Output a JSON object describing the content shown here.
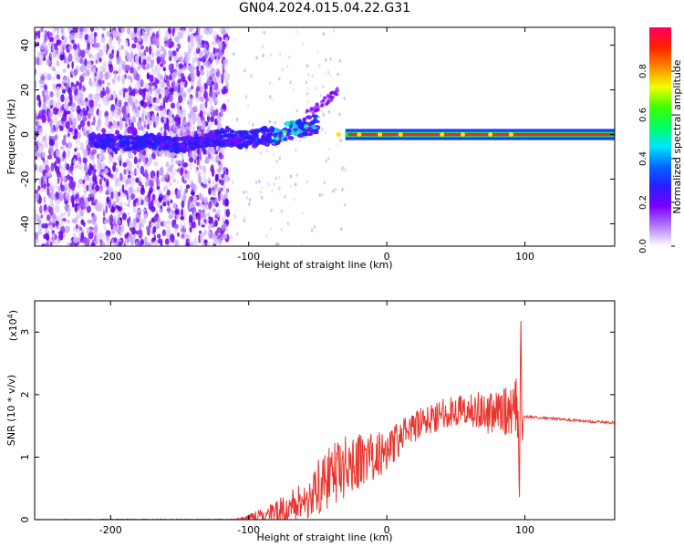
{
  "title": "GN04.2024.015.04.22.G31",
  "chart_data": [
    {
      "type": "heatmap",
      "xlabel": "Height of straight line (km)",
      "ylabel": "Frequency (Hz)",
      "xlim": [
        -255,
        165
      ],
      "ylim": [
        -50,
        48
      ],
      "xticks": [
        -200,
        -100,
        0,
        100
      ],
      "yticks": [
        -40,
        -20,
        0,
        20,
        40
      ],
      "grid": false,
      "colorbar": {
        "label": "Normalized spectral amplitude",
        "range": [
          0,
          1
        ],
        "ticks": [
          "0.0",
          "0.2",
          "0.4",
          "0.6",
          "0.8"
        ],
        "tick_values": [
          0,
          0.2,
          0.4,
          0.6,
          0.8
        ],
        "colormap": [
          "#ffffff",
          "#b27cff",
          "#7a00ff",
          "#2a1cff",
          "#0066ff",
          "#00e5ff",
          "#00ff60",
          "#40ff00",
          "#f0ff00",
          "#ff8800",
          "#ff2000",
          "#ff0060"
        ]
      },
      "ridge": {
        "x": [
          -210,
          -190,
          -170,
          -150,
          -120,
          -100,
          -80,
          -60,
          -50,
          -40,
          -30,
          -20,
          -10,
          0,
          20,
          40,
          60,
          80,
          90,
          100,
          120,
          140,
          165
        ],
        "y": [
          -3,
          -4,
          -3,
          -5,
          -1,
          -2,
          0,
          3,
          5,
          3,
          2,
          1,
          0,
          0,
          0,
          0,
          0,
          0,
          1,
          0,
          0,
          0,
          0
        ]
      },
      "noise_region_x": [
        -255,
        -115
      ]
    },
    {
      "type": "line",
      "xlabel": "Height of straight line (km)",
      "ylabel": "SNR (10 * v/v)",
      "ylabel_multiplier": "(x10",
      "ylabel_multiplier_exp": "4",
      "ylabel_multiplier_close": ")",
      "xlim": [
        -255,
        165
      ],
      "ylim": [
        0,
        3.5
      ],
      "xticks": [
        -200,
        -100,
        0,
        100
      ],
      "yticks": [
        0,
        1,
        2,
        3
      ],
      "grid": false,
      "series": [
        {
          "color": "#e8362f",
          "x": [
            -255,
            -200,
            -150,
            -110,
            -100,
            -80,
            -60,
            -50,
            -40,
            -30,
            -20,
            -10,
            0,
            10,
            20,
            30,
            40,
            50,
            60,
            70,
            80,
            90,
            95,
            96,
            97,
            98,
            99,
            100,
            120,
            140,
            165
          ],
          "y": [
            0.0,
            0.0,
            0.0,
            0.0,
            0.03,
            0.1,
            0.3,
            0.5,
            0.7,
            0.85,
            0.95,
            1.0,
            1.12,
            1.3,
            1.48,
            1.6,
            1.7,
            1.75,
            1.75,
            1.73,
            1.72,
            1.75,
            1.8,
            0.2,
            3.4,
            1.2,
            1.65,
            1.65,
            1.62,
            1.58,
            1.55
          ],
          "noise_amplitude": [
            0.0,
            0.01,
            0.01,
            0.01,
            0.05,
            0.2,
            0.35,
            0.45,
            0.5,
            0.5,
            0.45,
            0.4,
            0.35,
            0.3,
            0.25,
            0.25,
            0.25,
            0.25,
            0.3,
            0.35,
            0.35,
            0.4,
            0.5,
            0.0,
            0.0,
            0.0,
            0.02,
            0.02,
            0.02,
            0.02,
            0.02
          ]
        }
      ]
    }
  ]
}
